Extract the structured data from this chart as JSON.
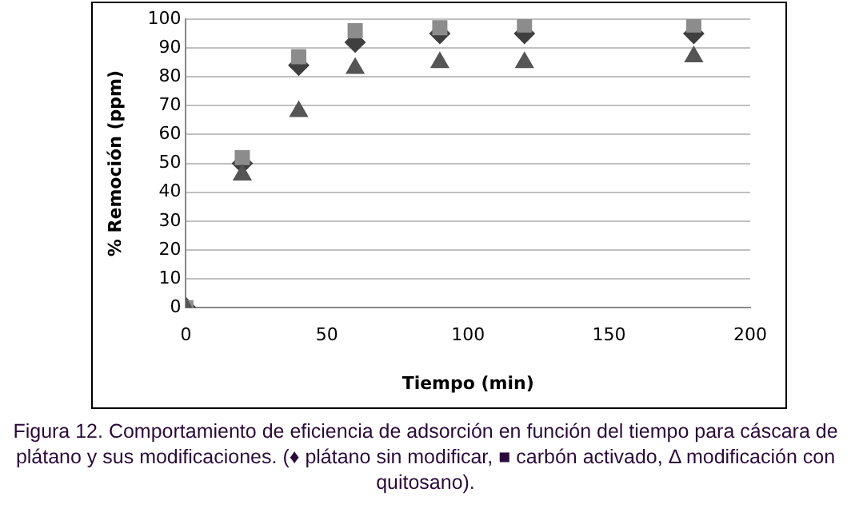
{
  "chart_data": {
    "type": "scatter",
    "xlabel": "Tiempo (min)",
    "ylabel": "% Remoción (ppm)",
    "x": [
      0,
      20,
      40,
      60,
      90,
      120,
      180
    ],
    "series": [
      {
        "color": "#3f3f3f",
        "marker": "diamond",
        "values": [
          0,
          50,
          84,
          92,
          95,
          95,
          95
        ]
      },
      {
        "color": "#8c8c8c",
        "marker": "square",
        "values": [
          0,
          52,
          87,
          96,
          97,
          98,
          98
        ]
      },
      {
        "color": "#555555",
        "marker": "triangle",
        "values": [
          0,
          46,
          68,
          83,
          85,
          85,
          87
        ]
      }
    ],
    "xlim": [
      0,
      200
    ],
    "xticks": [
      0,
      50,
      100,
      150,
      200
    ],
    "ylim": [
      0,
      100
    ],
    "yticks": [
      0,
      10,
      20,
      30,
      40,
      50,
      60,
      70,
      80,
      90,
      100
    ],
    "grid": "y",
    "legend": false,
    "annotations": [
      "Figura 12. Comportamiento de eficiencia de adsorción en función del tiempo para cáscara de plátano y sus modificaciones. (♦ plátano sin modificar, ■ carbón activado, Δ modificación con quitosano)."
    ]
  }
}
